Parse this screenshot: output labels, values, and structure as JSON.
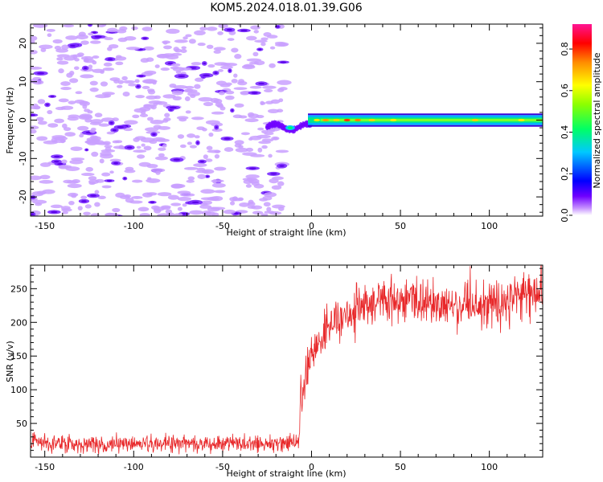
{
  "title": "KOM5.2024.018.01.39.G06",
  "chart_data": [
    {
      "type": "heatmap",
      "xlabel": "Height of straight line (km)",
      "ylabel": "Frequency (Hz)",
      "xlim": [
        -158,
        130
      ],
      "ylim": [
        -25,
        25
      ],
      "xticks": [
        -150,
        -100,
        -50,
        0,
        50,
        100
      ],
      "yticks": [
        -20,
        -10,
        0,
        10,
        20
      ],
      "colorbar": {
        "label": "Normalized spectral amplitude",
        "range": [
          0,
          0.92
        ],
        "ticks": [
          0.0,
          0.2,
          0.4,
          0.6,
          0.8
        ],
        "colormap": [
          "#ffffff",
          "#c38cff",
          "#6f00ff",
          "#0000ff",
          "#00c8ff",
          "#00ff66",
          "#8cff00",
          "#ffff00",
          "#ff8c00",
          "#ff0000",
          "#ff1493"
        ]
      },
      "signal": {
        "onset_km": -25,
        "frequency_hz": 0,
        "peak_amplitude": 0.85,
        "peak_near_km": [
          5,
          35
        ]
      }
    },
    {
      "type": "line",
      "xlabel": "Height of straight line (km)",
      "ylabel": "SNR (v/v)",
      "xlim": [
        -158,
        130
      ],
      "ylim": [
        0,
        285
      ],
      "xticks": [
        -150,
        -100,
        -50,
        0,
        50,
        100
      ],
      "yticks": [
        50,
        100,
        150,
        200,
        250
      ],
      "color": "#e8282a",
      "x": [
        -158,
        -140,
        -120,
        -100,
        -80,
        -60,
        -40,
        -20,
        -10,
        -7,
        -6,
        -5,
        -2,
        0,
        5,
        10,
        20,
        30,
        40,
        50,
        60,
        70,
        80,
        90,
        100,
        110,
        120,
        130
      ],
      "y": [
        20,
        20,
        19,
        20,
        21,
        20,
        21,
        21,
        22,
        24,
        110,
        95,
        130,
        150,
        175,
        195,
        212,
        222,
        232,
        233,
        232,
        226,
        226,
        216,
        226,
        232,
        242,
        240
      ]
    }
  ]
}
